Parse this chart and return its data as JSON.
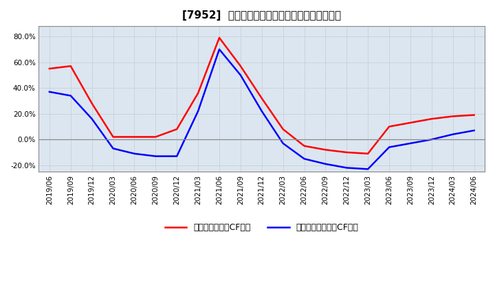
{
  "title": "[7952]  有利子負債キャッシュフロー比率の推移",
  "x_labels": [
    "2019/06",
    "2019/09",
    "2019/12",
    "2020/03",
    "2020/06",
    "2020/09",
    "2020/12",
    "2021/03",
    "2021/06",
    "2021/09",
    "2021/12",
    "2022/03",
    "2022/06",
    "2022/09",
    "2022/12",
    "2023/03",
    "2023/06",
    "2023/09",
    "2023/12",
    "2024/03",
    "2024/06"
  ],
  "series_operating": [
    55.0,
    57.0,
    28.0,
    2.0,
    2.0,
    2.0,
    8.0,
    36.0,
    79.0,
    57.0,
    32.0,
    8.0,
    -5.0,
    -8.0,
    -10.0,
    -11.0,
    10.0,
    13.0,
    16.0,
    18.0,
    19.0
  ],
  "series_free": [
    37.0,
    34.0,
    16.0,
    -7.0,
    -11.0,
    -13.0,
    -13.0,
    22.0,
    70.0,
    50.0,
    22.0,
    -3.0,
    -15.0,
    -19.0,
    -22.0,
    -23.0,
    -6.0,
    -3.0,
    0.0,
    4.0,
    7.0
  ],
  "ylim": [
    -25.0,
    88.0
  ],
  "yticks": [
    -20.0,
    0.0,
    20.0,
    40.0,
    60.0,
    80.0
  ],
  "line_color_operating": "#ff0000",
  "line_color_free": "#0000ff",
  "grid_color": "#aaaaaa",
  "plot_bg_color": "#dce6f0",
  "background_color": "#ffffff",
  "legend_operating": "有利子負債営業CF比率",
  "legend_free": "有利子負債フリーCF比率",
  "title_fontsize": 11,
  "tick_fontsize": 7.5,
  "legend_fontsize": 9
}
